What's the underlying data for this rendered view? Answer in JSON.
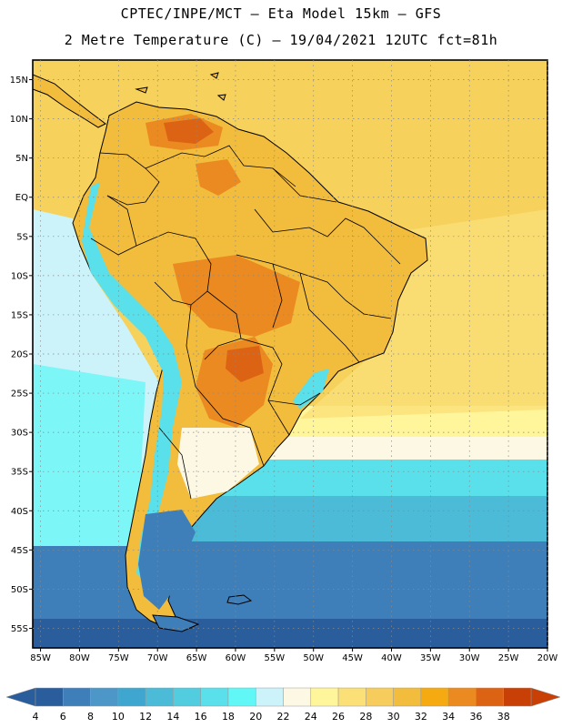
{
  "title": {
    "line1": "CPTEC/INPE/MCT –  Eta Model 15km – GFS",
    "line2": "2 Metre Temperature (C) – 19/04/2021 12UTC fct=81h"
  },
  "map": {
    "lon_range": [
      -86,
      -20
    ],
    "lat_range": [
      17.5,
      -57.5
    ],
    "lat_ticks": [
      "15N",
      "10N",
      "5N",
      "EQ",
      "5S",
      "10S",
      "15S",
      "20S",
      "25S",
      "30S",
      "35S",
      "40S",
      "45S",
      "50S",
      "55S"
    ],
    "lon_ticks": [
      "85W",
      "80W",
      "75W",
      "70W",
      "65W",
      "60W",
      "55W",
      "50W",
      "45W",
      "40W",
      "35W",
      "30W",
      "25W",
      "20W"
    ]
  },
  "colorbar": {
    "labels": [
      "4",
      "6",
      "8",
      "10",
      "12",
      "14",
      "16",
      "18",
      "20",
      "22",
      "24",
      "26",
      "28",
      "30",
      "32",
      "34",
      "36",
      "38"
    ],
    "colors": [
      "#2a5d9c",
      "#3e7fba",
      "#4d97c8",
      "#3fa7cf",
      "#4bbbd7",
      "#52cddf",
      "#59e0ea",
      "#62f7f7",
      "#cdf3fa",
      "#fdf8e4",
      "#fff59a",
      "#fbe078",
      "#f6cd5c",
      "#f2bc3c",
      "#f5aa12",
      "#ea8a21",
      "#dd6314",
      "#c84005"
    ],
    "low_color": "#2a5d9c",
    "high_color": "#c84005"
  },
  "palette": {
    "ocean_warm": "#f6d15c",
    "ocean_mild": "#fff59a",
    "ocean_cool": "#4bbbd7",
    "ocean_cold": "#2a5d9c",
    "land_hot": "#ea8a21",
    "land_warm": "#f2bc3c",
    "andes": "#59e0ea",
    "patagonia": "#3e7fba",
    "border": "#000000",
    "grid": "#888888"
  }
}
